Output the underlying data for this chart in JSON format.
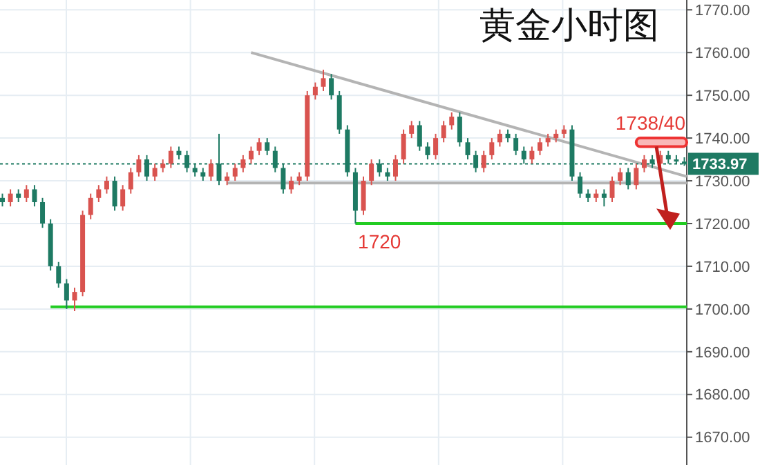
{
  "chart_data": {
    "type": "candlestick",
    "title": "黄金小时图",
    "categories": [
      null,
      null,
      null,
      null,
      null,
      null,
      null,
      null,
      null,
      null,
      null,
      null,
      null,
      null,
      null,
      null,
      null,
      null,
      null,
      null,
      null,
      null,
      null,
      null,
      null,
      null,
      null,
      null,
      null,
      null,
      null,
      null,
      null,
      null,
      null,
      null,
      null,
      null,
      null,
      null,
      null,
      null,
      null,
      null,
      null,
      null,
      null,
      null,
      null,
      null,
      null,
      null,
      null,
      null,
      null,
      null,
      null,
      null,
      null,
      null,
      null,
      null,
      null,
      null,
      null,
      null,
      null,
      null,
      null,
      null,
      null,
      null,
      null,
      null,
      null,
      null,
      null,
      null,
      null,
      null,
      null,
      null,
      null,
      null,
      null,
      null
    ],
    "ohlc": [
      [
        1726,
        1727,
        1724,
        1725
      ],
      [
        1725,
        1728,
        1724,
        1727
      ],
      [
        1727,
        1728,
        1725,
        1726
      ],
      [
        1726,
        1729,
        1725,
        1728
      ],
      [
        1728,
        1729,
        1724,
        1725
      ],
      [
        1725,
        1726,
        1719,
        1720
      ],
      [
        1720,
        1721,
        1709,
        1710
      ],
      [
        1710,
        1711,
        1705,
        1706
      ],
      [
        1706,
        1707,
        1700,
        1702
      ],
      [
        1702,
        1705,
        1699.5,
        1704
      ],
      [
        1704,
        1723,
        1703,
        1722
      ],
      [
        1722,
        1727,
        1721,
        1726
      ],
      [
        1726,
        1729,
        1725,
        1728
      ],
      [
        1728,
        1731,
        1727,
        1730
      ],
      [
        1730,
        1731,
        1723,
        1724
      ],
      [
        1724,
        1729,
        1723,
        1728
      ],
      [
        1728,
        1733,
        1727,
        1732
      ],
      [
        1732,
        1736,
        1731,
        1735
      ],
      [
        1735,
        1736,
        1730,
        1731
      ],
      [
        1731,
        1734,
        1730,
        1733
      ],
      [
        1733,
        1735,
        1732,
        1734
      ],
      [
        1734,
        1738,
        1733,
        1737
      ],
      [
        1737,
        1738,
        1735,
        1736
      ],
      [
        1736,
        1737,
        1732,
        1733
      ],
      [
        1733,
        1734,
        1731,
        1732
      ],
      [
        1732,
        1733,
        1730,
        1731
      ],
      [
        1731,
        1735,
        1730,
        1734
      ],
      [
        1734,
        1741,
        1729,
        1730
      ],
      [
        1730,
        1732,
        1729,
        1731
      ],
      [
        1731,
        1734,
        1730,
        1733
      ],
      [
        1733,
        1736,
        1732,
        1735
      ],
      [
        1735,
        1738,
        1734,
        1737
      ],
      [
        1737,
        1740,
        1736,
        1739
      ],
      [
        1739,
        1740,
        1736,
        1737
      ],
      [
        1737,
        1738,
        1732,
        1733
      ],
      [
        1733,
        1734,
        1727,
        1728
      ],
      [
        1728,
        1731,
        1727,
        1730
      ],
      [
        1730,
        1732,
        1729,
        1731
      ],
      [
        1731,
        1751,
        1730,
        1750
      ],
      [
        1750,
        1753,
        1749,
        1752
      ],
      [
        1752,
        1756,
        1751,
        1754
      ],
      [
        1754,
        1755,
        1749,
        1750
      ],
      [
        1750,
        1751,
        1741,
        1742
      ],
      [
        1742,
        1743,
        1731,
        1732
      ],
      [
        1732,
        1733,
        1720,
        1723
      ],
      [
        1723,
        1731,
        1722,
        1730
      ],
      [
        1730,
        1735,
        1729,
        1734
      ],
      [
        1734,
        1735,
        1731,
        1732
      ],
      [
        1732,
        1733,
        1730,
        1731
      ],
      [
        1731,
        1736,
        1730,
        1735
      ],
      [
        1735,
        1742,
        1734,
        1741
      ],
      [
        1741,
        1744,
        1740,
        1743
      ],
      [
        1743,
        1744,
        1737,
        1738
      ],
      [
        1738,
        1739,
        1735,
        1736
      ],
      [
        1736,
        1741,
        1735,
        1740
      ],
      [
        1740,
        1744,
        1739,
        1743
      ],
      [
        1743,
        1746,
        1742,
        1745
      ],
      [
        1745,
        1746,
        1738,
        1739
      ],
      [
        1739,
        1740,
        1735,
        1736
      ],
      [
        1736,
        1737,
        1732,
        1733
      ],
      [
        1733,
        1737,
        1732,
        1736
      ],
      [
        1736,
        1740,
        1735,
        1739
      ],
      [
        1739,
        1742,
        1738,
        1741
      ],
      [
        1741,
        1742,
        1739,
        1740
      ],
      [
        1740,
        1741,
        1736,
        1737
      ],
      [
        1737,
        1738,
        1734,
        1735
      ],
      [
        1735,
        1738,
        1734,
        1737
      ],
      [
        1737,
        1740,
        1736,
        1739
      ],
      [
        1739,
        1741,
        1738,
        1740
      ],
      [
        1740,
        1742,
        1739,
        1741
      ],
      [
        1741,
        1743,
        1740,
        1742
      ],
      [
        1742,
        1743,
        1730,
        1731
      ],
      [
        1731,
        1732,
        1726,
        1727
      ],
      [
        1727,
        1728,
        1725,
        1726
      ],
      [
        1726,
        1728,
        1725,
        1727
      ],
      [
        1727,
        1728,
        1724,
        1726
      ],
      [
        1726,
        1731,
        1725,
        1730
      ],
      [
        1730,
        1733,
        1729,
        1732
      ],
      [
        1732,
        1733,
        1728,
        1729
      ],
      [
        1729,
        1734,
        1728,
        1733
      ],
      [
        1733,
        1736,
        1732,
        1735
      ],
      [
        1735,
        1736,
        1733,
        1734
      ],
      [
        1734,
        1737,
        1733,
        1736
      ],
      [
        1736,
        1737,
        1734,
        1735
      ],
      [
        1735,
        1736,
        1734,
        1734.5
      ],
      [
        1734.5,
        1735.5,
        1733.5,
        1733.97
      ]
    ],
    "colors": [
      "#1e7a63",
      "#d9534f",
      "#1e7a63",
      "#d9534f",
      "#1e7a63",
      "#1e7a63",
      "#1e7a63",
      "#1e7a63",
      "#1e7a63",
      "#d9534f",
      "#d9534f",
      "#d9534f",
      "#d9534f",
      "#d9534f",
      "#1e7a63",
      "#d9534f",
      "#d9534f",
      "#d9534f",
      "#1e7a63",
      "#d9534f",
      "#d9534f",
      "#d9534f",
      "#1e7a63",
      "#1e7a63",
      "#1e7a63",
      "#1e7a63",
      "#d9534f",
      "#1e7a63",
      "#d9534f",
      "#d9534f",
      "#d9534f",
      "#d9534f",
      "#d9534f",
      "#1e7a63",
      "#1e7a63",
      "#1e7a63",
      "#d9534f",
      "#d9534f",
      "#d9534f",
      "#d9534f",
      "#d9534f",
      "#1e7a63",
      "#1e7a63",
      "#1e7a63",
      "#1e7a63",
      "#d9534f",
      "#d9534f",
      "#1e7a63",
      "#1e7a63",
      "#d9534f",
      "#d9534f",
      "#d9534f",
      "#1e7a63",
      "#1e7a63",
      "#d9534f",
      "#d9534f",
      "#d9534f",
      "#1e7a63",
      "#1e7a63",
      "#1e7a63",
      "#d9534f",
      "#d9534f",
      "#d9534f",
      "#1e7a63",
      "#1e7a63",
      "#1e7a63",
      "#d9534f",
      "#d9534f",
      "#d9534f",
      "#d9534f",
      "#d9534f",
      "#1e7a63",
      "#1e7a63",
      "#1e7a63",
      "#d9534f",
      "#1e7a63",
      "#d9534f",
      "#d9534f",
      "#1e7a63",
      "#d9534f",
      "#d9534f",
      "#1e7a63",
      "#d9534f",
      "#1e7a63",
      "#1e7a63",
      "#1e7a63"
    ],
    "ref_lines": [
      {
        "axis": "y",
        "value": 1733.97,
        "label": "1733.97",
        "color": "#1e7a63",
        "line_style": "dotted"
      },
      {
        "axis": "y",
        "value": 1720,
        "label": "1720",
        "color": "#22cc22",
        "line_style": "solid"
      },
      {
        "axis": "y",
        "value": 1700.5,
        "color": "#22cc22",
        "line_style": "solid"
      },
      {
        "axis": "y",
        "value": 1729.5,
        "color": "#b4b4b4",
        "line_style": "solid"
      }
    ],
    "bands": [
      {
        "axis": "y",
        "from": 1738,
        "to": 1740,
        "label": "1738/40",
        "color": "#ee3333"
      }
    ],
    "ylim": [
      1663.5,
      1772.3
    ],
    "yticks": [
      {
        "value": 1670,
        "label": "1670.00"
      },
      {
        "value": 1680,
        "label": "1680.00"
      },
      {
        "value": 1690,
        "label": "1690.00"
      },
      {
        "value": 1700,
        "label": "1700.00"
      },
      {
        "value": 1710,
        "label": "1710.00"
      },
      {
        "value": 1720,
        "label": "1720.00"
      },
      {
        "value": 1730,
        "label": "1730.00"
      },
      {
        "value": 1740,
        "label": "1740.00"
      },
      {
        "value": 1750,
        "label": "1750.00"
      },
      {
        "value": 1760,
        "label": "1760.00"
      },
      {
        "value": 1770,
        "label": "1770.00"
      }
    ],
    "grid": true,
    "tick_labels": "y"
  }
}
